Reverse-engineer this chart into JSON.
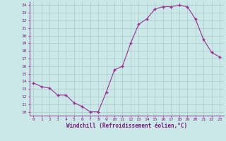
{
  "x": [
    0,
    1,
    2,
    3,
    4,
    5,
    6,
    7,
    8,
    9,
    10,
    11,
    12,
    13,
    14,
    15,
    16,
    17,
    18,
    19,
    20,
    21,
    22,
    23
  ],
  "y": [
    13.8,
    13.3,
    13.1,
    12.2,
    12.2,
    11.2,
    10.7,
    10.0,
    10.0,
    12.6,
    15.5,
    16.0,
    19.0,
    21.5,
    22.2,
    23.5,
    23.8,
    23.8,
    24.0,
    23.8,
    22.2,
    19.5,
    17.8,
    17.2
  ],
  "line_color": "#9b2d8e",
  "marker": "+",
  "marker_size": 3,
  "bg_color": "#cbe8e8",
  "grid_color": "#a0c4c4",
  "xlabel": "Windchill (Refroidissement éolien,°C)",
  "ylabel_ticks": [
    10,
    11,
    12,
    13,
    14,
    15,
    16,
    17,
    18,
    19,
    20,
    21,
    22,
    23,
    24
  ],
  "xlim": [
    -0.5,
    23.5
  ],
  "ylim": [
    9.5,
    24.5
  ],
  "xticks": [
    0,
    1,
    2,
    3,
    4,
    5,
    6,
    7,
    8,
    9,
    10,
    11,
    12,
    13,
    14,
    15,
    16,
    17,
    18,
    19,
    20,
    21,
    22,
    23
  ],
  "axis_color": "#7b1a7a",
  "tick_color": "#7b1a7a",
  "label_color": "#7b1a7a",
  "tick_fontsize": 4.5,
  "xlabel_fontsize": 5.5
}
